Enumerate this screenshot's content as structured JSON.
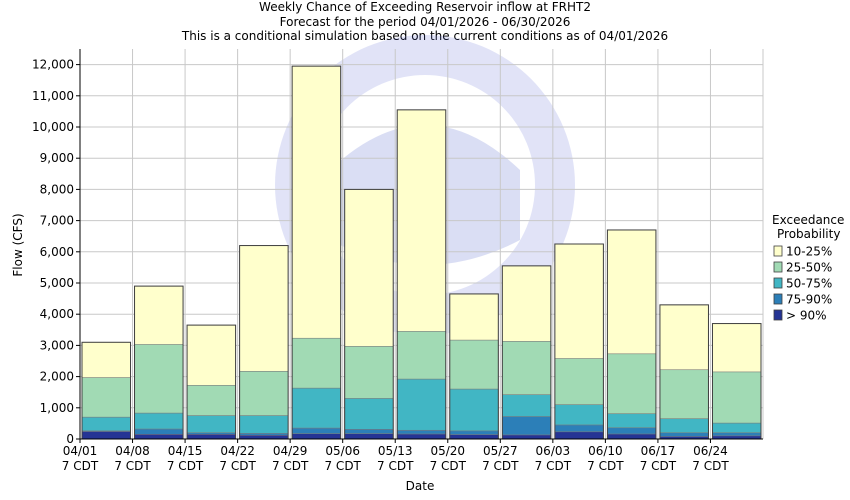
{
  "chart_data": {
    "type": "bar",
    "stacked": true,
    "title": "Weekly Chance of Exceeding Reservoir inflow at FRHT2",
    "subtitle_1": "Forecast for the period 04/01/2026 - 06/30/2026",
    "subtitle_2": "This is a conditional simulation based on the current conditions as of 04/01/2026",
    "xlabel": "Date",
    "ylabel": "Flow (CFS)",
    "ylim": [
      0,
      12500
    ],
    "yticks": [
      "0",
      "1,000",
      "2,000",
      "3,000",
      "4,000",
      "5,000",
      "6,000",
      "7,000",
      "8,000",
      "9,000",
      "10,000",
      "11,000",
      "12,000"
    ],
    "ytick_values": [
      0,
      1000,
      2000,
      3000,
      4000,
      5000,
      6000,
      7000,
      8000,
      9000,
      10000,
      11000,
      12000
    ],
    "xticks": [
      {
        "date": "04/01",
        "tz": "7 CDT"
      },
      {
        "date": "04/08",
        "tz": "7 CDT"
      },
      {
        "date": "04/15",
        "tz": "7 CDT"
      },
      {
        "date": "04/22",
        "tz": "7 CDT"
      },
      {
        "date": "04/29",
        "tz": "7 CDT"
      },
      {
        "date": "05/06",
        "tz": "7 CDT"
      },
      {
        "date": "05/13",
        "tz": "7 CDT"
      },
      {
        "date": "05/20",
        "tz": "7 CDT"
      },
      {
        "date": "05/27",
        "tz": "7 CDT"
      },
      {
        "date": "06/03",
        "tz": "7 CDT"
      },
      {
        "date": "06/10",
        "tz": "7 CDT"
      },
      {
        "date": "06/17",
        "tz": "7 CDT"
      },
      {
        "date": "06/24",
        "tz": "7 CDT"
      }
    ],
    "legend": {
      "title_1": "Exceedance",
      "title_2": "Probability",
      "position": "right"
    },
    "grid": true,
    "series": [
      {
        "name": "10-25%",
        "color": "#ffffcc",
        "top_values": [
          3100,
          4900,
          3650,
          6200,
          11950,
          8000,
          10550,
          4650,
          5550,
          6250,
          6700,
          4300,
          3700
        ]
      },
      {
        "name": "25-50%",
        "color": "#a1dab4",
        "top_values": [
          1970,
          3030,
          1720,
          2170,
          3230,
          2970,
          3450,
          3170,
          3130,
          2580,
          2730,
          2220,
          2150
        ]
      },
      {
        "name": "50-75%",
        "color": "#41b6c4",
        "top_values": [
          700,
          830,
          750,
          750,
          1630,
          1300,
          1920,
          1600,
          1420,
          1100,
          810,
          650,
          510
        ]
      },
      {
        "name": "75-90%",
        "color": "#2c7fb8",
        "top_values": [
          260,
          320,
          200,
          180,
          350,
          310,
          280,
          260,
          720,
          450,
          360,
          200,
          200
        ]
      },
      {
        "name": "> 90%",
        "color": "#253494",
        "top_values": [
          240,
          150,
          150,
          120,
          170,
          170,
          160,
          140,
          130,
          230,
          160,
          80,
          100
        ]
      }
    ]
  }
}
